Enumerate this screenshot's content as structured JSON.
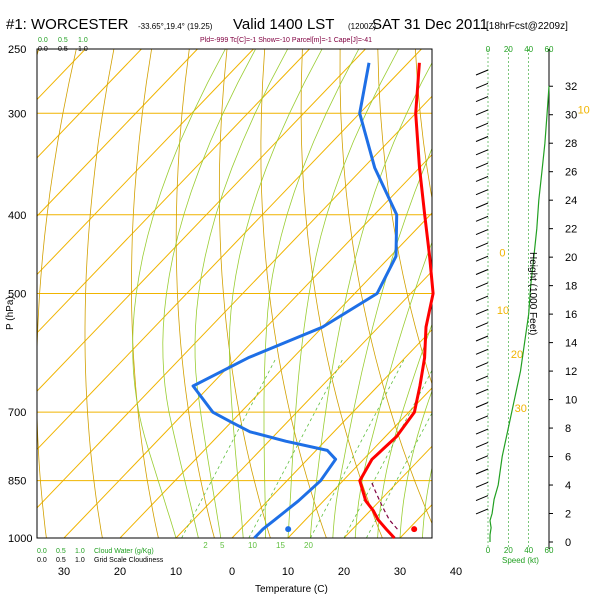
{
  "header": {
    "title": "#1: WORCESTER",
    "coords": "-33.65°,19.4° (19.25)",
    "valid": "Valid 1400 LST",
    "zulu": "(1200Z)",
    "date": "SAT 31 Dec 2011",
    "forecast": "[18hrFcst@2209z]",
    "indices": "Pld=-999 Tc[C]=-1 Show=-10 Parcel[m]=-1 Cape[J]=-41"
  },
  "top_left_labels": {
    "green": [
      "0.0",
      "0.5",
      "1.0"
    ],
    "black": [
      "0.0",
      "0.5",
      "1.0"
    ]
  },
  "bottom_left_labels": {
    "green": [
      "0.0",
      "0.5",
      "1.0",
      "Cloud Water (g/Kg)"
    ],
    "black": [
      "0.0",
      "0.5",
      "1.0",
      "Grid Scale Cloudiness"
    ]
  },
  "wind_axis_top": [
    "0",
    "20",
    "40",
    "60"
  ],
  "wind_axis_bottom": [
    "0",
    "20",
    "40",
    "60"
  ],
  "wind_axis_label": "Speed (kt)",
  "colors": {
    "temperature": "#ff0000",
    "dewpoint": "#1e6fe6",
    "isotherm": "#f0b400",
    "dry_adiabat": "#d2a000",
    "moist_adiabat": "#9acd32",
    "mixing_ratio": "#5fbf3f",
    "wind_speed": "#22a022"
  },
  "chart_data": {
    "type": "line",
    "subtype": "skew-t",
    "xlabel": "Temperature (C)",
    "ylabel": "P (hPa)",
    "y2label": "Height (1000 Feet)",
    "x_ticks": [
      "30",
      "20",
      "10",
      "0",
      "10",
      "20",
      "30",
      "40"
    ],
    "x_tick_values": [
      -30,
      -20,
      -10,
      0,
      10,
      20,
      30,
      40
    ],
    "y_ticks": [
      250,
      300,
      400,
      500,
      700,
      850,
      1000
    ],
    "y_scale": "log",
    "height_ticks": [
      0,
      2,
      4,
      6,
      8,
      10,
      12,
      14,
      16,
      18,
      20,
      22,
      24,
      26,
      28,
      30,
      32
    ],
    "isotherm_labels": [
      {
        "label": "0",
        "t": 0
      },
      {
        "label": "10",
        "t": 10
      },
      {
        "label": "20",
        "t": 20
      },
      {
        "label": "30",
        "t": 30
      },
      {
        "label": "10",
        "t": -10
      },
      {
        "label": "0",
        "t": 0
      },
      {
        "label": "10",
        "t": 10
      },
      {
        "label": "20",
        "t": 20
      },
      {
        "label": "30",
        "t": 30
      }
    ],
    "bottom_mix_labels": [
      {
        "label": "2",
        "x": 2
      },
      {
        "label": "5",
        "x": 5
      },
      {
        "label": "10",
        "x": 10
      },
      {
        "label": "15",
        "x": 15
      },
      {
        "label": "20",
        "x": 20
      }
    ],
    "series": [
      {
        "name": "Temperature",
        "p": [
          1000,
          975,
          950,
          925,
          900,
          850,
          800,
          750,
          700,
          650,
          600,
          550,
          500,
          450,
          400,
          350,
          300,
          260
        ],
        "t": [
          29,
          26,
          23,
          20.5,
          17.5,
          13,
          11.5,
          12,
          11,
          7.5,
          3.5,
          -1.5,
          -6,
          -13,
          -21,
          -30,
          -40,
          -48
        ]
      },
      {
        "name": "Dewpoint",
        "p": [
          1000,
          975,
          950,
          925,
          900,
          850,
          800,
          780,
          760,
          740,
          720,
          700,
          650,
          600,
          550,
          500,
          450,
          400,
          350,
          300,
          260
        ],
        "t": [
          4,
          4,
          4.5,
          5,
          5.5,
          6,
          5,
          2,
          -7,
          -15,
          -20,
          -25,
          -33,
          -28,
          -20,
          -16,
          -19,
          -26,
          -38,
          -50,
          -57
        ]
      },
      {
        "name": "Parcel",
        "p": [
          975,
          950,
          925,
          900,
          875,
          850
        ],
        "t": [
          28,
          25,
          22.5,
          20,
          17.5,
          15
        ]
      }
    ],
    "surface_points": [
      {
        "name": "Surface temperature",
        "p": 975,
        "t": 31
      },
      {
        "name": "Surface dewpoint",
        "p": 975,
        "t": 8.5
      }
    ],
    "wind_speed": {
      "x_label": "Speed (kt)",
      "height_kft": [
        0,
        0.5,
        1,
        1.5,
        2,
        3,
        4,
        6,
        8,
        10,
        12,
        14,
        16,
        18,
        20,
        22,
        24,
        26,
        28,
        30,
        32
      ],
      "speed_kt": [
        2,
        2,
        3,
        2,
        4,
        6,
        10,
        14,
        20,
        26,
        32,
        36,
        40,
        42,
        45,
        48,
        50,
        53,
        56,
        58,
        60
      ]
    }
  }
}
